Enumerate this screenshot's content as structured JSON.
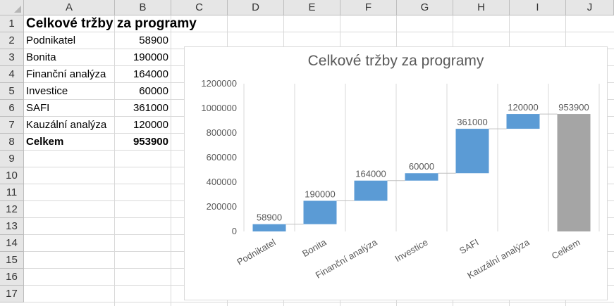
{
  "columns": [
    "A",
    "B",
    "C",
    "D",
    "E",
    "F",
    "G",
    "H",
    "I",
    "J"
  ],
  "rows": [
    "1",
    "2",
    "3",
    "4",
    "5",
    "6",
    "7",
    "8",
    "9",
    "10",
    "11",
    "12",
    "13",
    "14",
    "15",
    "16",
    "17"
  ],
  "sheet": {
    "title": "Celkové tržby za programy",
    "items": [
      {
        "label": "Podnikatel",
        "value": "58900"
      },
      {
        "label": "Bonita",
        "value": "190000"
      },
      {
        "label": "Finanční analýza",
        "value": "164000"
      },
      {
        "label": "Investice",
        "value": "60000"
      },
      {
        "label": "SAFI",
        "value": "361000"
      },
      {
        "label": "Kauzální analýza",
        "value": "120000"
      }
    ],
    "total": {
      "label": "Celkem",
      "value": "953900"
    }
  },
  "chart_data": {
    "type": "bar",
    "subtype": "waterfall",
    "title": "Celkové tržby za programy",
    "categories": [
      "Podnikatel",
      "Bonita",
      "Finanční analýza",
      "Investice",
      "SAFI",
      "Kauzální analýza",
      "Celkem"
    ],
    "values": [
      58900,
      190000,
      164000,
      60000,
      361000,
      120000,
      953900
    ],
    "total_index": 6,
    "y_ticks": [
      "0",
      "200000",
      "400000",
      "600000",
      "800000",
      "1000000",
      "1200000"
    ],
    "ylim": [
      0,
      1200000
    ],
    "colors": {
      "increase": "#5b9bd5",
      "total": "#a5a5a5",
      "connector": "#bfbfbf",
      "tick_text": "#595959"
    },
    "grid": "vertical",
    "legend": "none"
  }
}
